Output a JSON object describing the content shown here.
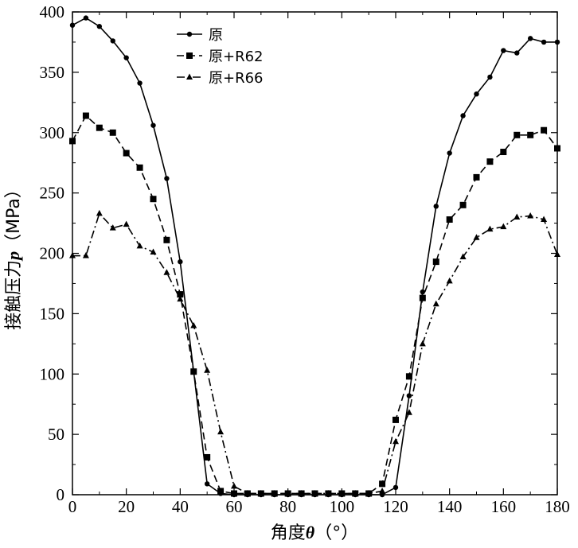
{
  "chart_data": {
    "type": "line",
    "title": "",
    "xlabel": "角度θ（°）",
    "xlabel_parts": [
      "角度",
      "θ",
      "（°）"
    ],
    "ylabel": "接触压力p（MPa）",
    "ylabel_parts": [
      "接触压力",
      "p",
      "（MPa）"
    ],
    "xlim": [
      0,
      180
    ],
    "ylim": [
      0,
      400
    ],
    "xticks": [
      0,
      20,
      40,
      60,
      80,
      100,
      120,
      140,
      160,
      180
    ],
    "yticks": [
      0,
      50,
      100,
      150,
      200,
      250,
      300,
      350,
      400
    ],
    "grid": false,
    "legend_position": "top-center",
    "x": [
      0,
      5,
      10,
      15,
      20,
      25,
      30,
      35,
      40,
      45,
      50,
      55,
      60,
      65,
      70,
      75,
      80,
      85,
      90,
      95,
      100,
      105,
      110,
      115,
      120,
      125,
      130,
      135,
      140,
      145,
      150,
      155,
      160,
      165,
      170,
      175,
      180
    ],
    "series": [
      {
        "name": "原",
        "marker": "circle",
        "dash": "solid",
        "values": [
          389,
          395,
          388,
          376,
          362,
          341,
          306,
          262,
          193,
          102,
          9,
          1,
          0,
          0,
          0,
          0,
          0,
          0,
          0,
          0,
          0,
          0,
          0,
          0,
          6,
          82,
          168,
          239,
          283,
          314,
          332,
          346,
          368,
          366,
          378,
          375,
          375
        ]
      },
      {
        "name": "原+R62",
        "marker": "square",
        "dash": "dashed",
        "values": [
          293,
          314,
          304,
          300,
          283,
          271,
          245,
          211,
          166,
          102,
          31,
          3,
          1,
          1,
          1,
          1,
          1,
          1,
          1,
          1,
          1,
          1,
          1,
          9,
          62,
          98,
          163,
          193,
          228,
          240,
          263,
          276,
          284,
          298,
          298,
          302,
          287
        ]
      },
      {
        "name": "原+R66",
        "marker": "triangle",
        "dash": "dashdot",
        "values": [
          198,
          198,
          233,
          221,
          224,
          206,
          201,
          184,
          162,
          140,
          103,
          52,
          7,
          1,
          1,
          1,
          1,
          1,
          1,
          1,
          1,
          1,
          1,
          3,
          44,
          68,
          125,
          158,
          177,
          197,
          213,
          220,
          222,
          230,
          231,
          228,
          199
        ]
      }
    ]
  }
}
